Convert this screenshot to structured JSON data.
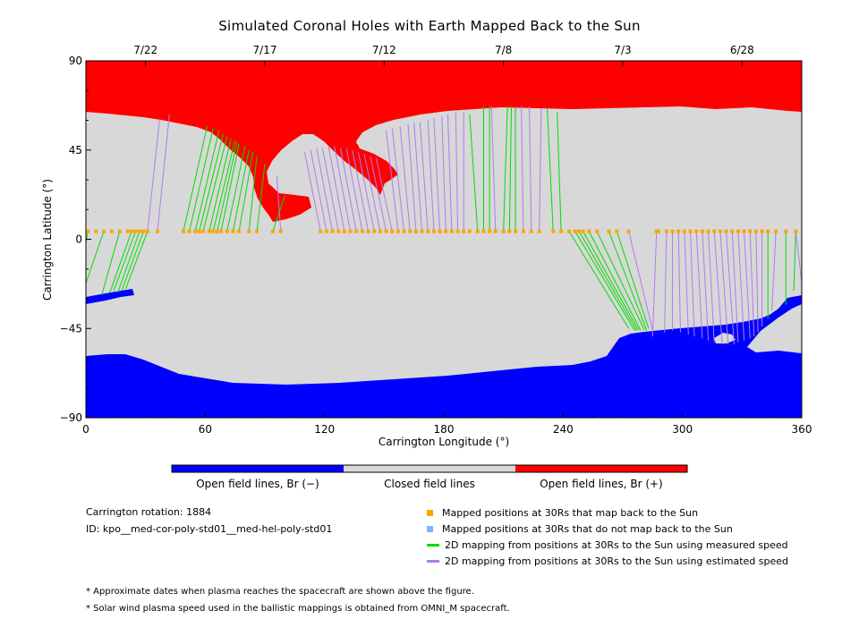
{
  "chart_data": {
    "type": "map",
    "title": "Simulated Coronal Holes with Earth Mapped Back to the Sun",
    "xlabel": "Carrington Longitude (°)",
    "ylabel": "Carrington Latitude (°)",
    "xlim": [
      0,
      360
    ],
    "ylim": [
      -90,
      90
    ],
    "x_ticks": [
      "0",
      "60",
      "120",
      "180",
      "240",
      "300",
      "360"
    ],
    "y_ticks": [
      "90",
      "45",
      "0",
      "−45",
      "−90"
    ],
    "top_date_ticks": [
      {
        "label": "7/22",
        "lon": 30
      },
      {
        "label": "7/17",
        "lon": 90
      },
      {
        "label": "7/12",
        "lon": 150
      },
      {
        "label": "7/8",
        "lon": 210
      },
      {
        "label": "7/3",
        "lon": 270
      },
      {
        "label": "6/28",
        "lon": 330
      }
    ],
    "colors": {
      "open_negative": "#0000ff",
      "closed": "#d8d8d8",
      "open_positive": "#ff0000",
      "mapped_point": "#ffa500",
      "unmapped_point": "#7ab8f5",
      "measured_line": "#00dd00",
      "estimated_line": "#b07cf0"
    },
    "mapped_points_lat": 4,
    "mapped_points_lon": [
      1,
      5,
      9,
      13,
      17,
      21,
      23,
      25,
      27,
      29,
      31,
      36,
      49,
      52,
      55,
      57,
      59,
      62,
      64,
      66,
      68,
      71,
      74,
      77,
      82,
      86,
      94,
      98,
      118,
      121,
      124,
      127,
      130,
      133,
      136,
      139,
      142,
      145,
      148,
      151,
      154,
      157,
      160,
      163,
      166,
      169,
      172,
      175,
      178,
      181,
      184,
      187,
      190,
      193,
      197,
      200,
      203,
      206,
      210,
      213,
      216,
      220,
      224,
      228,
      235,
      239,
      243,
      246,
      248,
      250,
      253,
      257,
      263,
      267,
      273,
      287,
      288,
      292,
      295,
      298,
      301,
      304,
      307,
      310,
      313,
      316,
      319,
      322,
      325,
      328,
      331,
      334,
      337,
      340,
      343,
      347,
      352,
      357
    ],
    "mapping_lines": [
      {
        "x1": 1,
        "y1": 4,
        "x2": -3,
        "y2": -20,
        "kind": "measured"
      },
      {
        "x1": 9,
        "y1": 4,
        "x2": -2,
        "y2": -28,
        "kind": "measured"
      },
      {
        "x1": 17,
        "y1": 4,
        "x2": 8,
        "y2": -28,
        "kind": "measured"
      },
      {
        "x1": 23,
        "y1": 4,
        "x2": 12,
        "y2": -27,
        "kind": "measured"
      },
      {
        "x1": 25,
        "y1": 4,
        "x2": 14,
        "y2": -26,
        "kind": "measured"
      },
      {
        "x1": 27,
        "y1": 4,
        "x2": 16,
        "y2": -27,
        "kind": "measured"
      },
      {
        "x1": 29,
        "y1": 4,
        "x2": 18,
        "y2": -26,
        "kind": "measured"
      },
      {
        "x1": 31,
        "y1": 4,
        "x2": 20,
        "y2": -25,
        "kind": "measured"
      },
      {
        "x1": 36,
        "y1": 4,
        "x2": 42,
        "y2": 63,
        "kind": "estimated"
      },
      {
        "x1": 31,
        "y1": 4,
        "x2": 37,
        "y2": 60,
        "kind": "estimated"
      },
      {
        "x1": 49,
        "y1": 4,
        "x2": 61,
        "y2": 57,
        "kind": "measured"
      },
      {
        "x1": 52,
        "y1": 4,
        "x2": 64,
        "y2": 56,
        "kind": "measured"
      },
      {
        "x1": 55,
        "y1": 4,
        "x2": 67,
        "y2": 55,
        "kind": "measured"
      },
      {
        "x1": 57,
        "y1": 4,
        "x2": 69,
        "y2": 53,
        "kind": "measured"
      },
      {
        "x1": 59,
        "y1": 4,
        "x2": 71,
        "y2": 52,
        "kind": "measured"
      },
      {
        "x1": 62,
        "y1": 4,
        "x2": 73,
        "y2": 51,
        "kind": "measured"
      },
      {
        "x1": 64,
        "y1": 4,
        "x2": 75,
        "y2": 50,
        "kind": "measured"
      },
      {
        "x1": 66,
        "y1": 4,
        "x2": 76,
        "y2": 49,
        "kind": "measured"
      },
      {
        "x1": 68,
        "y1": 4,
        "x2": 77,
        "y2": 48,
        "kind": "measured"
      },
      {
        "x1": 71,
        "y1": 4,
        "x2": 80,
        "y2": 47,
        "kind": "measured"
      },
      {
        "x1": 74,
        "y1": 4,
        "x2": 82,
        "y2": 45,
        "kind": "measured"
      },
      {
        "x1": 77,
        "y1": 4,
        "x2": 84,
        "y2": 44,
        "kind": "measured"
      },
      {
        "x1": 82,
        "y1": 4,
        "x2": 86,
        "y2": 42,
        "kind": "measured"
      },
      {
        "x1": 86,
        "y1": 4,
        "x2": 90,
        "y2": 38,
        "kind": "measured"
      },
      {
        "x1": 94,
        "y1": 4,
        "x2": 100,
        "y2": 22,
        "kind": "measured"
      },
      {
        "x1": 98,
        "y1": 4,
        "x2": 96,
        "y2": 32,
        "kind": "estimated"
      },
      {
        "x1": 118,
        "y1": 4,
        "x2": 110,
        "y2": 44,
        "kind": "estimated"
      },
      {
        "x1": 121,
        "y1": 4,
        "x2": 113,
        "y2": 45,
        "kind": "estimated"
      },
      {
        "x1": 124,
        "y1": 4,
        "x2": 116,
        "y2": 46,
        "kind": "estimated"
      },
      {
        "x1": 127,
        "y1": 4,
        "x2": 119,
        "y2": 46,
        "kind": "estimated"
      },
      {
        "x1": 130,
        "y1": 4,
        "x2": 122,
        "y2": 47,
        "kind": "estimated"
      },
      {
        "x1": 133,
        "y1": 4,
        "x2": 125,
        "y2": 47,
        "kind": "estimated"
      },
      {
        "x1": 136,
        "y1": 4,
        "x2": 128,
        "y2": 46,
        "kind": "estimated"
      },
      {
        "x1": 139,
        "y1": 4,
        "x2": 131,
        "y2": 46,
        "kind": "estimated"
      },
      {
        "x1": 142,
        "y1": 4,
        "x2": 134,
        "y2": 45,
        "kind": "estimated"
      },
      {
        "x1": 145,
        "y1": 4,
        "x2": 137,
        "y2": 44,
        "kind": "estimated"
      },
      {
        "x1": 148,
        "y1": 4,
        "x2": 140,
        "y2": 43,
        "kind": "estimated"
      },
      {
        "x1": 151,
        "y1": 4,
        "x2": 143,
        "y2": 42,
        "kind": "estimated"
      },
      {
        "x1": 154,
        "y1": 4,
        "x2": 146,
        "y2": 41,
        "kind": "estimated"
      },
      {
        "x1": 157,
        "y1": 4,
        "x2": 151,
        "y2": 55,
        "kind": "estimated"
      },
      {
        "x1": 160,
        "y1": 4,
        "x2": 154,
        "y2": 56,
        "kind": "estimated"
      },
      {
        "x1": 163,
        "y1": 4,
        "x2": 158,
        "y2": 57,
        "kind": "estimated"
      },
      {
        "x1": 166,
        "y1": 4,
        "x2": 162,
        "y2": 58,
        "kind": "estimated"
      },
      {
        "x1": 169,
        "y1": 4,
        "x2": 165,
        "y2": 59,
        "kind": "estimated"
      },
      {
        "x1": 172,
        "y1": 4,
        "x2": 168,
        "y2": 59,
        "kind": "estimated"
      },
      {
        "x1": 175,
        "y1": 4,
        "x2": 172,
        "y2": 60,
        "kind": "estimated"
      },
      {
        "x1": 178,
        "y1": 4,
        "x2": 175,
        "y2": 61,
        "kind": "estimated"
      },
      {
        "x1": 181,
        "y1": 4,
        "x2": 179,
        "y2": 62,
        "kind": "estimated"
      },
      {
        "x1": 184,
        "y1": 4,
        "x2": 182,
        "y2": 63,
        "kind": "estimated"
      },
      {
        "x1": 187,
        "y1": 4,
        "x2": 186,
        "y2": 64,
        "kind": "estimated"
      },
      {
        "x1": 190,
        "y1": 4,
        "x2": 190,
        "y2": 64,
        "kind": "estimated"
      },
      {
        "x1": 197,
        "y1": 4,
        "x2": 193,
        "y2": 63,
        "kind": "measured"
      },
      {
        "x1": 200,
        "y1": 4,
        "x2": 200,
        "y2": 67,
        "kind": "measured"
      },
      {
        "x1": 203,
        "y1": 4,
        "x2": 203,
        "y2": 67,
        "kind": "measured"
      },
      {
        "x1": 206,
        "y1": 4,
        "x2": 204,
        "y2": 67,
        "kind": "estimated"
      },
      {
        "x1": 210,
        "y1": 4,
        "x2": 212,
        "y2": 67,
        "kind": "measured"
      },
      {
        "x1": 213,
        "y1": 4,
        "x2": 214,
        "y2": 67,
        "kind": "measured"
      },
      {
        "x1": 216,
        "y1": 4,
        "x2": 216,
        "y2": 67,
        "kind": "measured"
      },
      {
        "x1": 220,
        "y1": 4,
        "x2": 219,
        "y2": 67,
        "kind": "estimated"
      },
      {
        "x1": 224,
        "y1": 4,
        "x2": 223,
        "y2": 67,
        "kind": "estimated"
      },
      {
        "x1": 228,
        "y1": 4,
        "x2": 229,
        "y2": 66,
        "kind": "estimated"
      },
      {
        "x1": 235,
        "y1": 4,
        "x2": 232,
        "y2": 66,
        "kind": "measured"
      },
      {
        "x1": 239,
        "y1": 4,
        "x2": 237,
        "y2": 64,
        "kind": "measured"
      },
      {
        "x1": 243,
        "y1": 4,
        "x2": 273,
        "y2": -45,
        "kind": "measured"
      },
      {
        "x1": 246,
        "y1": 4,
        "x2": 276,
        "y2": -46,
        "kind": "measured"
      },
      {
        "x1": 248,
        "y1": 4,
        "x2": 277,
        "y2": -46,
        "kind": "measured"
      },
      {
        "x1": 250,
        "y1": 4,
        "x2": 278,
        "y2": -46,
        "kind": "measured"
      },
      {
        "x1": 253,
        "y1": 4,
        "x2": 279,
        "y2": -46,
        "kind": "measured"
      },
      {
        "x1": 257,
        "y1": 4,
        "x2": 281,
        "y2": -46,
        "kind": "measured"
      },
      {
        "x1": 263,
        "y1": 4,
        "x2": 282,
        "y2": -46,
        "kind": "measured"
      },
      {
        "x1": 267,
        "y1": 4,
        "x2": 283,
        "y2": -45,
        "kind": "measured"
      },
      {
        "x1": 273,
        "y1": 4,
        "x2": 285,
        "y2": -46,
        "kind": "estimated"
      },
      {
        "x1": 287,
        "y1": 4,
        "x2": 285,
        "y2": -49,
        "kind": "estimated"
      },
      {
        "x1": 292,
        "y1": 4,
        "x2": 291,
        "y2": -47,
        "kind": "estimated"
      },
      {
        "x1": 295,
        "y1": 4,
        "x2": 295,
        "y2": -46,
        "kind": "estimated"
      },
      {
        "x1": 298,
        "y1": 4,
        "x2": 299,
        "y2": -47,
        "kind": "estimated"
      },
      {
        "x1": 301,
        "y1": 4,
        "x2": 303,
        "y2": -48,
        "kind": "estimated"
      },
      {
        "x1": 304,
        "y1": 4,
        "x2": 306,
        "y2": -49,
        "kind": "estimated"
      },
      {
        "x1": 307,
        "y1": 4,
        "x2": 310,
        "y2": -50,
        "kind": "estimated"
      },
      {
        "x1": 310,
        "y1": 4,
        "x2": 313,
        "y2": -51,
        "kind": "estimated"
      },
      {
        "x1": 313,
        "y1": 4,
        "x2": 316,
        "y2": -52,
        "kind": "estimated"
      },
      {
        "x1": 316,
        "y1": 4,
        "x2": 320,
        "y2": -53,
        "kind": "estimated"
      },
      {
        "x1": 319,
        "y1": 4,
        "x2": 323,
        "y2": -53,
        "kind": "estimated"
      },
      {
        "x1": 322,
        "y1": 4,
        "x2": 326,
        "y2": -53,
        "kind": "estimated"
      },
      {
        "x1": 325,
        "y1": 4,
        "x2": 328,
        "y2": -52,
        "kind": "estimated"
      },
      {
        "x1": 328,
        "y1": 4,
        "x2": 331,
        "y2": -51,
        "kind": "estimated"
      },
      {
        "x1": 331,
        "y1": 4,
        "x2": 334,
        "y2": -50,
        "kind": "estimated"
      },
      {
        "x1": 334,
        "y1": 4,
        "x2": 336,
        "y2": -49,
        "kind": "estimated"
      },
      {
        "x1": 337,
        "y1": 4,
        "x2": 338,
        "y2": -47,
        "kind": "estimated"
      },
      {
        "x1": 340,
        "y1": 4,
        "x2": 340,
        "y2": -44,
        "kind": "estimated"
      },
      {
        "x1": 343,
        "y1": 4,
        "x2": 343,
        "y2": -40,
        "kind": "measured"
      },
      {
        "x1": 347,
        "y1": 4,
        "x2": 345,
        "y2": -36,
        "kind": "estimated"
      },
      {
        "x1": 352,
        "y1": 4,
        "x2": 352,
        "y2": -33,
        "kind": "measured"
      },
      {
        "x1": 357,
        "y1": 4,
        "x2": 356,
        "y2": -26,
        "kind": "measured"
      },
      {
        "x1": 357,
        "y1": 4,
        "x2": 360,
        "y2": -22,
        "kind": "estimated"
      }
    ],
    "legend_bar": [
      {
        "label": "Open field lines, Br (−)",
        "color": "#0000ff"
      },
      {
        "label": "Closed field lines",
        "color": "#d8d8d8"
      },
      {
        "label": "Open field lines, Br (+)",
        "color": "#ff0000"
      }
    ]
  },
  "info": {
    "rotation": "Carrington rotation: 1884",
    "id": "ID: kpo__med-cor-poly-std01__med-hel-poly-std01"
  },
  "legend": [
    {
      "label": "Mapped positions at 30Rs that map back to the Sun",
      "kind": "dot",
      "color": "#ffa500"
    },
    {
      "label": "Mapped positions at 30Rs that do not map back to the Sun",
      "kind": "dot",
      "color": "#7ab8f5"
    },
    {
      "label": "2D mapping from positions at 30Rs to the Sun using measured speed",
      "kind": "line",
      "color": "#00dd00"
    },
    {
      "label": "2D mapping from positions at 30Rs to the Sun using estimated speed",
      "kind": "line",
      "color": "#b07cf0"
    }
  ],
  "notes": [
    "* Approximate dates when plasma reaches the spacecraft are shown above the figure.",
    "* Solar wind plasma speed used in the ballistic mappings is obtained from OMNI_M spacecraft."
  ]
}
